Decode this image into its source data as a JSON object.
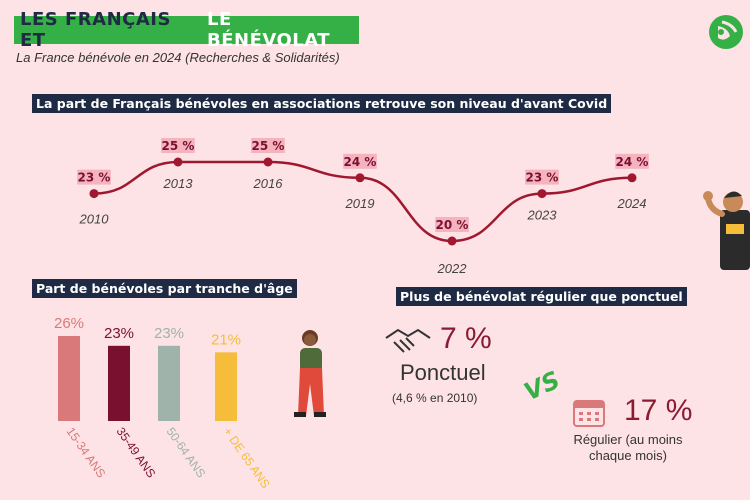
{
  "header": {
    "title_part1": "LES FRANÇAIS ET",
    "title_part2": "LE BÉNÉVOLAT",
    "subtitle": "La France bénévole en 2024 (Recherches & Solidarités)"
  },
  "colors": {
    "background": "#fde3e6",
    "title_bg": "#35b046",
    "heading_bg": "#1f2a44",
    "line_color": "#a0182f",
    "accent": "#8b1a32",
    "vs_color": "#35b046"
  },
  "chart_data": [
    {
      "type": "line",
      "title": "La part de Français bénévoles en associations retrouve son niveau d'avant Covid",
      "x": [
        "2010",
        "2013",
        "2016",
        "2019",
        "2022",
        "2023",
        "2024"
      ],
      "values": [
        23,
        25,
        25,
        24,
        20,
        23,
        24
      ],
      "labels": [
        "23 %",
        "25 %",
        "25 %",
        "24 %",
        "20 %",
        "23 %",
        "24 %"
      ],
      "grid": false
    },
    {
      "type": "bar",
      "title": "Part de bénévoles par tranche d'âge",
      "categories": [
        "15-34 ANS",
        "35-49 ANS",
        "50-64 ANS",
        "+ DE 65 ANS"
      ],
      "values": [
        26,
        23,
        23,
        21
      ],
      "labels": [
        "26%",
        "23%",
        "23%",
        "21%"
      ],
      "colors": [
        "#d9797a",
        "#7a1030",
        "#9fb3ab",
        "#f6bd3a"
      ],
      "grid": false
    }
  ],
  "freq": {
    "heading": "Plus de bénévolat régulier que ponctuel",
    "ponctuel_pct": "7 %",
    "ponctuel_label": "Ponctuel",
    "ponctuel_note": "(4,6 % en 2010)",
    "vs": "VS",
    "regulier_pct": "17 %",
    "regulier_label_1": "Régulier (au moins",
    "regulier_label_2": "chaque mois)"
  },
  "icons": [
    "logo-icon",
    "handshake-icon",
    "calendar-icon",
    "person-waving-icon",
    "woman-walking-icon"
  ]
}
